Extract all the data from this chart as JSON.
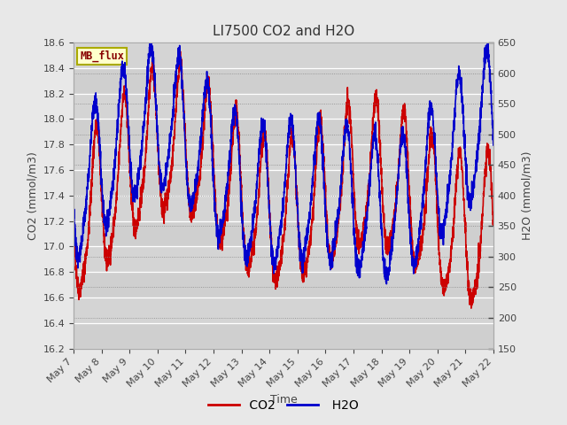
{
  "title": "LI7500 CO2 and H2O",
  "xlabel": "Time",
  "ylabel_left": "CO2 (mmol/m3)",
  "ylabel_right": "H2O (mmol/m3)",
  "co2_ylim": [
    16.2,
    18.6
  ],
  "h2o_ylim": [
    150,
    650
  ],
  "co2_yticks": [
    16.2,
    16.4,
    16.6,
    16.8,
    17.0,
    17.2,
    17.4,
    17.6,
    17.8,
    18.0,
    18.2,
    18.4,
    18.6
  ],
  "h2o_yticks": [
    150,
    200,
    250,
    300,
    350,
    400,
    450,
    500,
    550,
    600,
    650
  ],
  "xtick_labels": [
    "May 7",
    "May 8",
    "May 9",
    "May 10",
    "May 11",
    "May 12",
    "May 13",
    "May 14",
    "May 15",
    "May 16",
    "May 17",
    "May 18",
    "May 19",
    "May 20",
    "May 21",
    "May 22"
  ],
  "co2_color": "#cc0000",
  "h2o_color": "#0000cc",
  "fig_bg_color": "#e8e8e8",
  "plot_bg_color": "#d4d4d4",
  "legend_bg": "#ffffcc",
  "legend_border": "#cccc00",
  "legend_text": "MB_flux",
  "legend_text_color": "#880000",
  "title_fontsize": 11,
  "label_fontsize": 9,
  "tick_fontsize": 8,
  "line_width": 1.2,
  "n_points": 3000,
  "random_seed": 42
}
